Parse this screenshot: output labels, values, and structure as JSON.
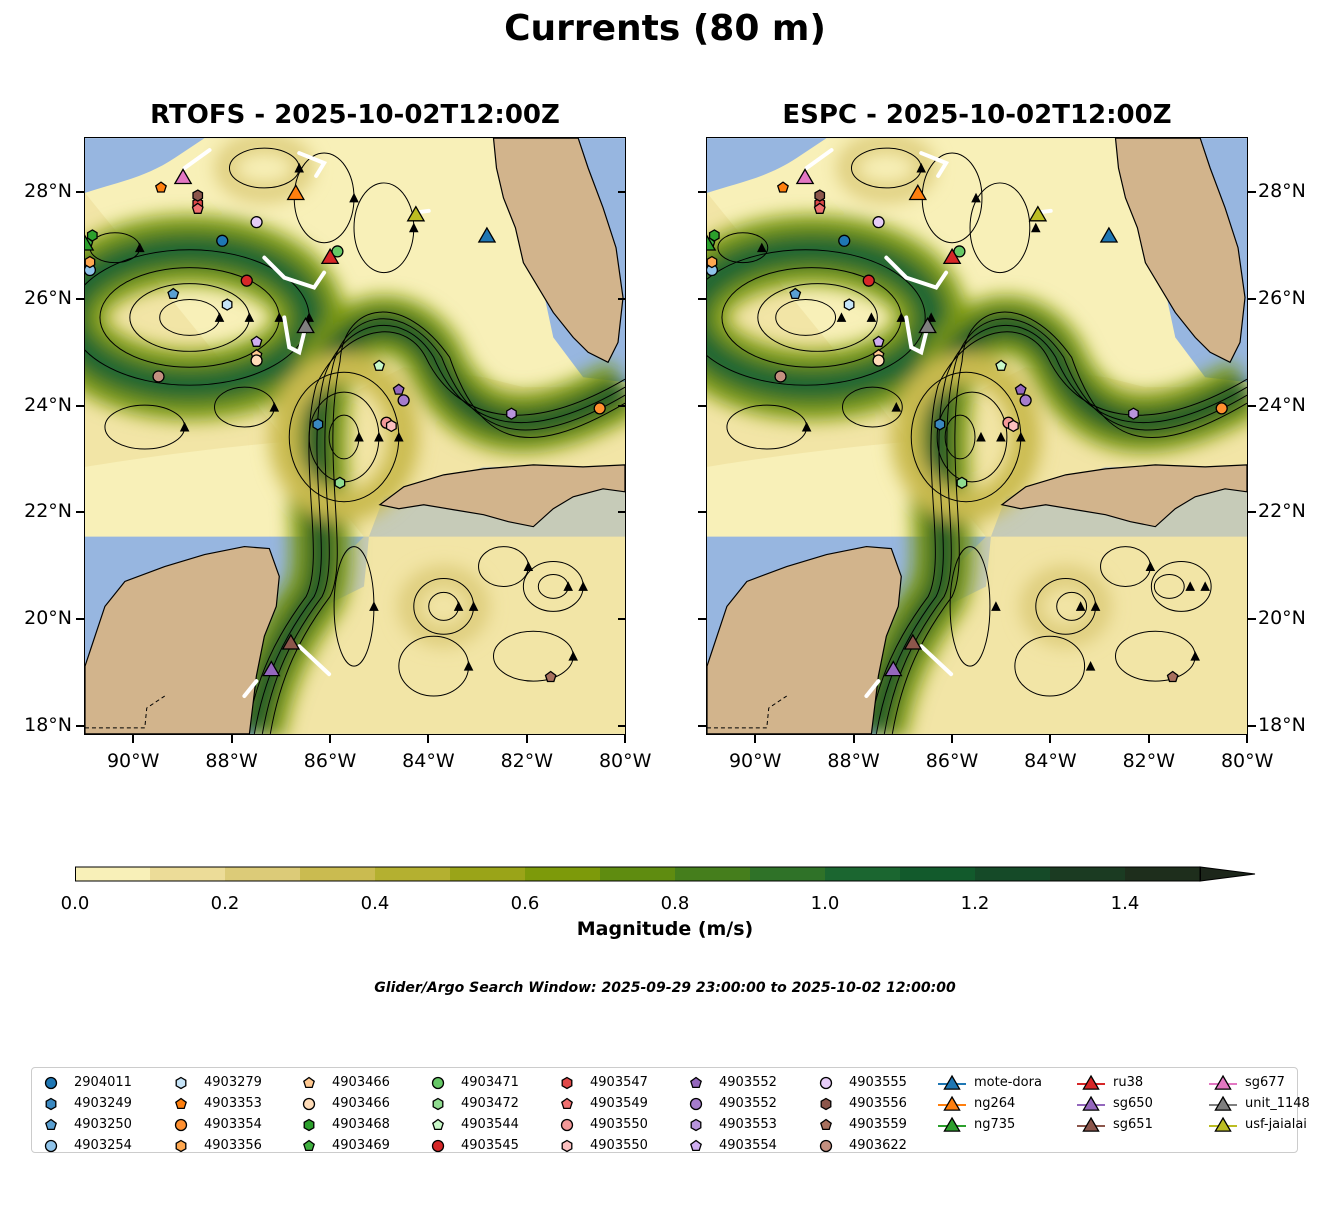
{
  "title": "Currents (80 m)",
  "chart_data": {
    "type": "map-streamline",
    "title": "Currents (80 m)",
    "panels": [
      {
        "title": "RTOFS - 2025-10-02T12:00Z"
      },
      {
        "title": "ESPC - 2025-10-02T12:00Z"
      }
    ],
    "lon_range": [
      -91,
      -80
    ],
    "lat_range": [
      17.8,
      29
    ],
    "lon_ticks": [
      {
        "value": -90,
        "label": "90°W"
      },
      {
        "value": -88,
        "label": "88°W"
      },
      {
        "value": -86,
        "label": "86°W"
      },
      {
        "value": -84,
        "label": "84°W"
      },
      {
        "value": -82,
        "label": "82°W"
      },
      {
        "value": -80,
        "label": "80°W"
      }
    ],
    "lat_ticks": [
      {
        "value": 28,
        "label": "28°N"
      },
      {
        "value": 26,
        "label": "26°N"
      },
      {
        "value": 24,
        "label": "24°N"
      },
      {
        "value": 22,
        "label": "22°N"
      },
      {
        "value": 20,
        "label": "20°N"
      },
      {
        "value": 18,
        "label": "18°N"
      }
    ],
    "colorbar": {
      "label": "Magnitude (m/s)",
      "min": 0,
      "max": 1.5,
      "step": 0.1,
      "extend": "max",
      "ticks": [
        "0.0",
        "0.2",
        "0.4",
        "0.6",
        "0.8",
        "1.0",
        "1.2",
        "1.4"
      ],
      "colors": [
        "#f8f0b8",
        "#ecdc98",
        "#dccb78",
        "#cabb50",
        "#b4b030",
        "#9aa418",
        "#7d9a0a",
        "#5f8c10",
        "#457e1c",
        "#2f7228",
        "#1b6630",
        "#125a2c",
        "#154a28",
        "#1b3b22",
        "#1e2e1c"
      ],
      "over_color": "#1c261a"
    },
    "search_window": "Glider/Argo Search Window: 2025-09-29 23:00:00 to 2025-10-02 12:00:00",
    "markers": [
      {
        "id": "2904011",
        "shape": "circle",
        "color": "#1f77b4",
        "lon": -88.2,
        "lat": 27.1
      },
      {
        "id": "4903249",
        "shape": "hexagon",
        "color": "#3a88c0",
        "lon": -86.25,
        "lat": 23.65
      },
      {
        "id": "4903250",
        "shape": "pentagon",
        "color": "#5aa0d2",
        "lon": -89.2,
        "lat": 26.1
      },
      {
        "id": "4903254",
        "shape": "circle",
        "color": "#90c4ea",
        "lon": -90.9,
        "lat": 26.55
      },
      {
        "id": "4903279",
        "shape": "hexagon",
        "color": "#c6e4f8",
        "lon": -88.1,
        "lat": 25.9
      },
      {
        "id": "4903353",
        "shape": "pentagon",
        "color": "#ff7f0e",
        "lon": -89.45,
        "lat": 28.1
      },
      {
        "id": "4903354",
        "shape": "circle",
        "color": "#ff9030",
        "lon": -80.5,
        "lat": 23.95
      },
      {
        "id": "4903356",
        "shape": "hexagon",
        "color": "#ffa850",
        "lon": -90.9,
        "lat": 26.7
      },
      {
        "id": "4903466",
        "shape": "pentagon",
        "color": "#ffc890",
        "lon": -87.5,
        "lat": 24.95
      },
      {
        "id": "4903466",
        "shape": "circle",
        "color": "#ffdcb8",
        "lon": -87.5,
        "lat": 24.85
      },
      {
        "id": "4903468",
        "shape": "hexagon",
        "color": "#2ca02c",
        "lon": -90.85,
        "lat": 27.2
      },
      {
        "id": "4903469",
        "shape": "pentagon",
        "color": "#40b040",
        "lon": -90.95,
        "lat": 27.05
      },
      {
        "id": "4903471",
        "shape": "circle",
        "color": "#66c866",
        "lon": -85.85,
        "lat": 26.9
      },
      {
        "id": "4903472",
        "shape": "hexagon",
        "color": "#90dc90",
        "lon": -85.8,
        "lat": 22.55
      },
      {
        "id": "4903544",
        "shape": "pentagon",
        "color": "#c8f8c8",
        "lon": -85.0,
        "lat": 24.75
      },
      {
        "id": "4903545",
        "shape": "circle",
        "color": "#d62728",
        "lon": -87.7,
        "lat": 26.35
      },
      {
        "id": "4903547",
        "shape": "hexagon",
        "color": "#e04848",
        "lon": -88.7,
        "lat": 27.8
      },
      {
        "id": "4903549",
        "shape": "pentagon",
        "color": "#f07070",
        "lon": -88.7,
        "lat": 27.7
      },
      {
        "id": "4903550",
        "shape": "circle",
        "color": "#f29898",
        "lon": -84.85,
        "lat": 23.68
      },
      {
        "id": "4903550",
        "shape": "hexagon",
        "color": "#fcc0c0",
        "lon": -84.75,
        "lat": 23.62
      },
      {
        "id": "4903552",
        "shape": "pentagon",
        "color": "#9467bd",
        "lon": -84.6,
        "lat": 24.3
      },
      {
        "id": "4903552",
        "shape": "circle",
        "color": "#a57ccc",
        "lon": -84.5,
        "lat": 24.1
      },
      {
        "id": "4903553",
        "shape": "hexagon",
        "color": "#b894dc",
        "lon": -82.3,
        "lat": 23.85
      },
      {
        "id": "4903554",
        "shape": "pentagon",
        "color": "#cfaef0",
        "lon": -87.5,
        "lat": 25.2
      },
      {
        "id": "4903555",
        "shape": "circle",
        "color": "#e6ccf8",
        "lon": -87.5,
        "lat": 27.45
      },
      {
        "id": "4903556",
        "shape": "hexagon",
        "color": "#8c564b",
        "lon": -88.7,
        "lat": 27.95
      },
      {
        "id": "4903559",
        "shape": "pentagon",
        "color": "#a8705e",
        "lon": -81.5,
        "lat": 18.9
      },
      {
        "id": "4903622",
        "shape": "circle",
        "color": "#c49080",
        "lon": -89.5,
        "lat": 24.55
      },
      {
        "id": "mote-dora",
        "shape": "triangle",
        "color": "#1f77b4",
        "lon": -82.8,
        "lat": 27.2
      },
      {
        "id": "ng264",
        "shape": "triangle",
        "color": "#ff7f0e",
        "lon": -86.7,
        "lat": 28.0
      },
      {
        "id": "ng735",
        "shape": "triangle",
        "color": "#2ca02c",
        "lon": -91.0,
        "lat": 27.05
      },
      {
        "id": "ru38",
        "shape": "triangle",
        "color": "#d62728",
        "lon": -86.0,
        "lat": 26.8
      },
      {
        "id": "sg650",
        "shape": "triangle",
        "color": "#9467bd",
        "lon": -87.2,
        "lat": 19.05
      },
      {
        "id": "sg651",
        "shape": "triangle",
        "color": "#8c564b",
        "lon": -86.8,
        "lat": 19.55
      },
      {
        "id": "sg677",
        "shape": "triangle",
        "color": "#e377c2",
        "lon": -89.0,
        "lat": 28.3
      },
      {
        "id": "unit_1148",
        "shape": "triangle",
        "color": "#7f7f7f",
        "lon": -86.5,
        "lat": 25.5
      },
      {
        "id": "usf-jaialai",
        "shape": "triangle",
        "color": "#bcbd22",
        "lon": -84.25,
        "lat": 27.6
      }
    ]
  }
}
